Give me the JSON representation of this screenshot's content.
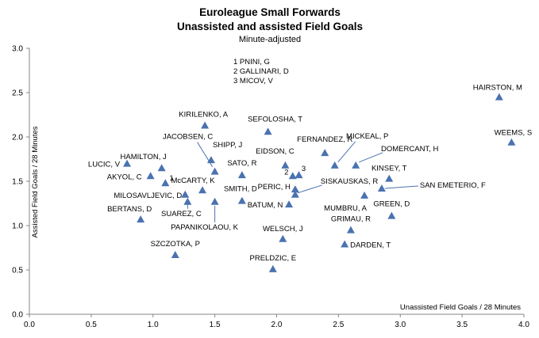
{
  "chart_data": {
    "type": "scatter",
    "title": "Euroleague Small Forwards",
    "title2": "Unassisted and assisted Field Goals",
    "subtitle": "Minute-adjusted",
    "xlabel": "Unassisted Field Goals / 28 Minutes",
    "ylabel": "Assisted Field Goals / 28 Minutes",
    "xlim": [
      0.0,
      4.0
    ],
    "ylim": [
      0.0,
      3.0
    ],
    "x_ticks": [
      "0.0",
      "0.5",
      "1.0",
      "1.5",
      "2.0",
      "2.5",
      "3.0",
      "3.5",
      "4.0"
    ],
    "y_ticks": [
      "0.0",
      "0.5",
      "1.0",
      "1.5",
      "2.0",
      "2.5",
      "3.0"
    ],
    "grid": false,
    "marker": "triangle",
    "marker_color": "#4a72b0",
    "legend_lines": [
      "1  PNINI, G",
      "2  GALLINARI, D",
      "3  MICOV, V"
    ],
    "points": [
      {
        "label": "HAIRSTON, M",
        "x": 3.8,
        "y": 2.45
      },
      {
        "label": "WEEMS, S",
        "x": 3.9,
        "y": 1.94
      },
      {
        "label": "KIRILENKO, A",
        "x": 1.42,
        "y": 2.13
      },
      {
        "label": "SEFOLOSHA, T",
        "x": 1.93,
        "y": 2.06
      },
      {
        "label": "JACOBSEN, C",
        "x": 1.5,
        "y": 1.61
      },
      {
        "label": "SHIPP, J",
        "x": 1.47,
        "y": 1.74
      },
      {
        "label": "FERNANDEZ, R",
        "x": 2.39,
        "y": 1.82
      },
      {
        "label": "MICKEAL, P",
        "x": 2.47,
        "y": 1.68
      },
      {
        "label": "DOMERCANT, H",
        "x": 2.64,
        "y": 1.68
      },
      {
        "label": "EIDSON, C",
        "x": 2.07,
        "y": 1.68
      },
      {
        "label": "LUCIC, V",
        "x": 0.79,
        "y": 1.7
      },
      {
        "label": "HAMILTON, J",
        "x": 1.07,
        "y": 1.65
      },
      {
        "label": "AKYOL, C",
        "x": 0.98,
        "y": 1.56
      },
      {
        "label": "PNINI, G",
        "x": 1.1,
        "y": 1.48
      },
      {
        "label": "SATO, R",
        "x": 1.72,
        "y": 1.57
      },
      {
        "label": "KINSEY, T",
        "x": 2.91,
        "y": 1.53
      },
      {
        "label": "McCARTY, K",
        "x": 1.4,
        "y": 1.4
      },
      {
        "label": "GALLINARI, D",
        "x": 2.13,
        "y": 1.56
      },
      {
        "label": "MICOV, V",
        "x": 2.18,
        "y": 1.57
      },
      {
        "label": "PERIC, H",
        "x": 2.15,
        "y": 1.41
      },
      {
        "label": "SISKAUSKAS, R",
        "x": 2.15,
        "y": 1.35
      },
      {
        "label": "SAN EMETERIO, F",
        "x": 2.85,
        "y": 1.42
      },
      {
        "label": "MILOSAVLJEVIC, D",
        "x": 1.26,
        "y": 1.35
      },
      {
        "label": "SMITH, D",
        "x": 1.72,
        "y": 1.28
      },
      {
        "label": "BATUM, N",
        "x": 2.1,
        "y": 1.24
      },
      {
        "label": "MUMBRU, A",
        "x": 2.71,
        "y": 1.34
      },
      {
        "label": "SUAREZ, C",
        "x": 1.28,
        "y": 1.27
      },
      {
        "label": "PAPANIKOLAOU, K",
        "x": 1.5,
        "y": 1.27
      },
      {
        "label": "GREEN, D",
        "x": 2.93,
        "y": 1.11
      },
      {
        "label": "BERTANS, D",
        "x": 0.9,
        "y": 1.07
      },
      {
        "label": "GRIMAU, R",
        "x": 2.6,
        "y": 0.95
      },
      {
        "label": "WELSCH, J",
        "x": 2.05,
        "y": 0.85
      },
      {
        "label": "DARDEN, T",
        "x": 2.55,
        "y": 0.79
      },
      {
        "label": "SZCZOTKA, P",
        "x": 1.18,
        "y": 0.67
      },
      {
        "label": "PRELDZIC, E",
        "x": 1.97,
        "y": 0.51
      }
    ],
    "marker_numbers": [
      {
        "text": "1",
        "x": 1.1,
        "y": 1.48
      },
      {
        "text": "2",
        "x": 2.13,
        "y": 1.56
      },
      {
        "text": "3",
        "x": 2.18,
        "y": 1.57
      }
    ]
  }
}
